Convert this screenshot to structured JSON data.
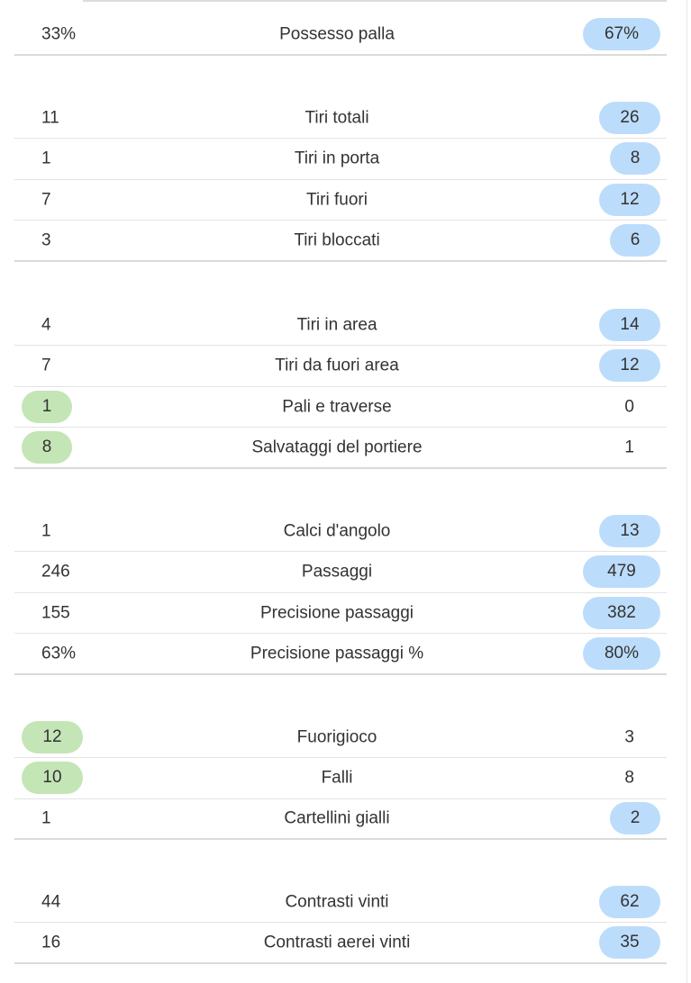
{
  "groups": [
    [
      {
        "label": "Possesso palla",
        "left": "33%",
        "right": "67%",
        "winner": "right"
      }
    ],
    [
      {
        "label": "Tiri totali",
        "left": "11",
        "right": "26",
        "winner": "right"
      },
      {
        "label": "Tiri in porta",
        "left": "1",
        "right": "8",
        "winner": "right"
      },
      {
        "label": "Tiri fuori",
        "left": "7",
        "right": "12",
        "winner": "right"
      },
      {
        "label": "Tiri bloccati",
        "left": "3",
        "right": "6",
        "winner": "right"
      }
    ],
    [
      {
        "label": "Tiri in area",
        "left": "4",
        "right": "14",
        "winner": "right"
      },
      {
        "label": "Tiri da fuori area",
        "left": "7",
        "right": "12",
        "winner": "right"
      },
      {
        "label": "Pali e traverse",
        "left": "1",
        "right": "0",
        "winner": "left"
      },
      {
        "label": "Salvataggi del portiere",
        "left": "8",
        "right": "1",
        "winner": "left"
      }
    ],
    [
      {
        "label": "Calci d'angolo",
        "left": "1",
        "right": "13",
        "winner": "right"
      },
      {
        "label": "Passaggi",
        "left": "246",
        "right": "479",
        "winner": "right"
      },
      {
        "label": "Precisione passaggi",
        "left": "155",
        "right": "382",
        "winner": "right"
      },
      {
        "label": "Precisione passaggi %",
        "left": "63%",
        "right": "80%",
        "winner": "right"
      }
    ],
    [
      {
        "label": "Fuorigioco",
        "left": "12",
        "right": "3",
        "winner": "left"
      },
      {
        "label": "Falli",
        "left": "10",
        "right": "8",
        "winner": "left"
      },
      {
        "label": "Cartellini gialli",
        "left": "1",
        "right": "2",
        "winner": "right"
      }
    ],
    [
      {
        "label": "Contrasti vinti",
        "left": "44",
        "right": "62",
        "winner": "right"
      },
      {
        "label": "Contrasti aerei vinti",
        "left": "16",
        "right": "35",
        "winner": "right"
      }
    ]
  ],
  "colors": {
    "right_highlight": "#bcdcfb",
    "left_highlight": "#c4e5b6",
    "text": "#333333",
    "divider": "#e3e3e3"
  }
}
